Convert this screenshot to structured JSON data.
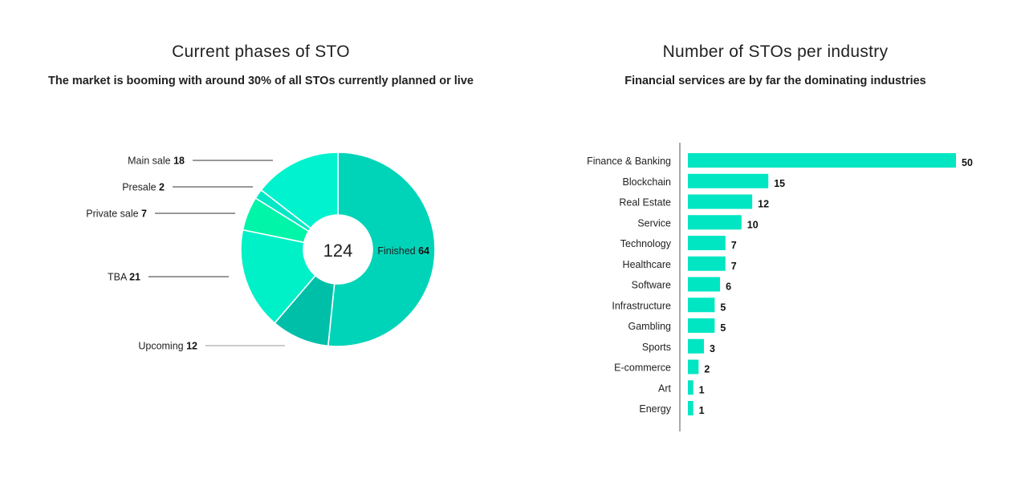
{
  "colors": {
    "accent": "#00E6C3",
    "text": "#222222"
  },
  "chart_data": [
    {
      "type": "pie",
      "title": "Current phases of STO",
      "subtitle": "The market is booming with around 30% of all STOs currently planned or live",
      "center_label": "124",
      "slices": [
        {
          "label": "Finished",
          "value": 64,
          "color": "#00D4B8"
        },
        {
          "label": "Upcoming",
          "value": 12,
          "color": "#00BFA8"
        },
        {
          "label": "TBA",
          "value": 21,
          "color": "#00F0C8"
        },
        {
          "label": "Private sale",
          "value": 7,
          "color": "#00F5A8"
        },
        {
          "label": "Presale",
          "value": 2,
          "color": "#00E8C5"
        },
        {
          "label": "Main sale",
          "value": 18,
          "color": "#00F3CE"
        }
      ]
    },
    {
      "type": "bar",
      "orientation": "horizontal",
      "title": "Number of STOs per industry",
      "subtitle": "Financial services are by far the dominating industries",
      "categories": [
        "Finance & Banking",
        "Blockchain",
        "Real Estate",
        "Service",
        "Technology",
        "Healthcare",
        "Software",
        "Infrastructure",
        "Gambling",
        "Sports",
        "E-commerce",
        "Art",
        "Energy"
      ],
      "values": [
        50,
        15,
        12,
        10,
        7,
        7,
        6,
        5,
        5,
        3,
        2,
        1,
        1
      ],
      "xlim": [
        0,
        50
      ],
      "bar_color": "#00E6C3"
    }
  ]
}
